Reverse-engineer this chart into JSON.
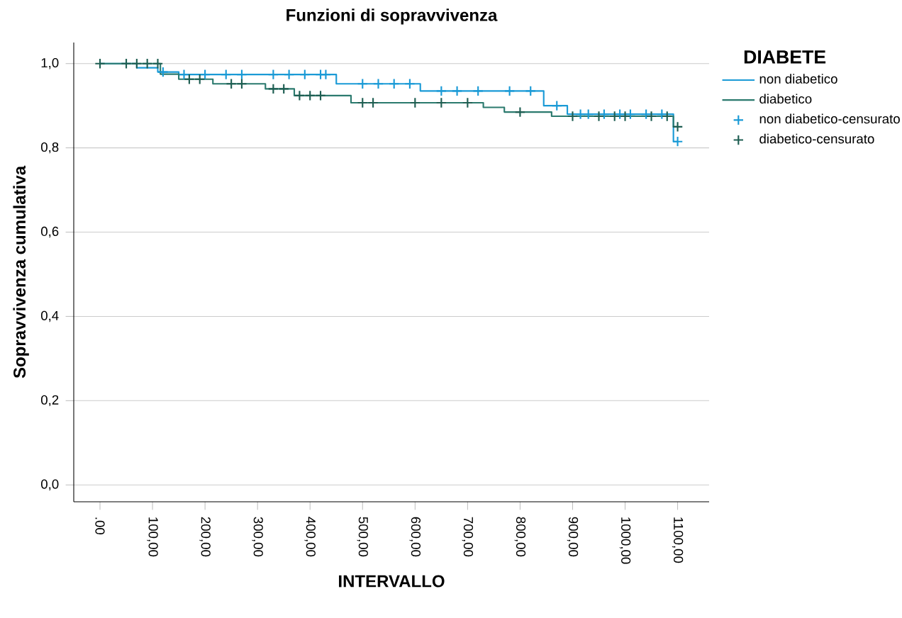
{
  "chart_data": {
    "type": "step",
    "title": "Funzioni di sopravvivenza",
    "xlabel": "INTERVALLO",
    "ylabel": "Sopravvivenza cumulativa",
    "legend_title": "DIABETE",
    "legend": "right",
    "grid": "y",
    "xlim": [
      -50,
      1160
    ],
    "ylim": [
      -0.04,
      1.05
    ],
    "xticks": [
      {
        "value": 0,
        "label": ".00"
      },
      {
        "value": 100,
        "label": "100,00"
      },
      {
        "value": 200,
        "label": "200,00"
      },
      {
        "value": 300,
        "label": "300,00"
      },
      {
        "value": 400,
        "label": "400,00"
      },
      {
        "value": 500,
        "label": "500,00"
      },
      {
        "value": 600,
        "label": "600,00"
      },
      {
        "value": 700,
        "label": "700,00"
      },
      {
        "value": 800,
        "label": "800,00"
      },
      {
        "value": 900,
        "label": "900,00"
      },
      {
        "value": 1000,
        "label": "1000,00"
      },
      {
        "value": 1100,
        "label": "1100,00"
      }
    ],
    "yticks": [
      {
        "value": 0,
        "label": "0,0"
      },
      {
        "value": 0.2,
        "label": "0,2"
      },
      {
        "value": 0.4,
        "label": "0,4"
      },
      {
        "value": 0.6,
        "label": "0,6"
      },
      {
        "value": 0.8,
        "label": "0,8"
      },
      {
        "value": 1.0,
        "label": "1,0"
      }
    ],
    "series": [
      {
        "name": "non diabetico",
        "type": "step",
        "color": "#1a9ad6",
        "x": [
          0,
          70,
          110,
          150,
          450,
          610,
          845,
          890,
          1092,
          1100
        ],
        "values": [
          1.0,
          0.99,
          0.98,
          0.974,
          0.952,
          0.935,
          0.9,
          0.88,
          0.815,
          0.815
        ]
      },
      {
        "name": "diabetico",
        "type": "step",
        "color": "#2b7a6e",
        "x": [
          0,
          115,
          150,
          215,
          315,
          370,
          478,
          730,
          770,
          860,
          1092,
          1100
        ],
        "values": [
          1.0,
          0.975,
          0.963,
          0.952,
          0.94,
          0.924,
          0.907,
          0.896,
          0.885,
          0.875,
          0.85,
          0.85
        ]
      },
      {
        "name": "non diabetico-censurato",
        "type": "scatter",
        "marker": "cross",
        "color": "#1a9ad6",
        "x": [
          120,
          160,
          200,
          240,
          270,
          330,
          360,
          390,
          420,
          430,
          500,
          530,
          560,
          590,
          650,
          680,
          720,
          780,
          820,
          870,
          915,
          930,
          960,
          990,
          1010,
          1040,
          1070,
          1100
        ],
        "values": [
          0.98,
          0.974,
          0.974,
          0.974,
          0.974,
          0.974,
          0.974,
          0.974,
          0.974,
          0.974,
          0.952,
          0.952,
          0.952,
          0.952,
          0.935,
          0.935,
          0.935,
          0.935,
          0.935,
          0.9,
          0.88,
          0.88,
          0.88,
          0.88,
          0.88,
          0.88,
          0.88,
          0.815
        ]
      },
      {
        "name": "diabetico-censurato",
        "type": "scatter",
        "marker": "cross",
        "color": "#1e5e52",
        "x": [
          0,
          50,
          70,
          90,
          110,
          170,
          190,
          250,
          270,
          330,
          350,
          380,
          400,
          420,
          500,
          520,
          600,
          650,
          700,
          800,
          900,
          950,
          980,
          1000,
          1050,
          1080,
          1100
        ],
        "values": [
          1.0,
          1.0,
          1.0,
          1.0,
          1.0,
          0.963,
          0.963,
          0.952,
          0.952,
          0.94,
          0.94,
          0.924,
          0.924,
          0.924,
          0.907,
          0.907,
          0.907,
          0.907,
          0.907,
          0.885,
          0.875,
          0.875,
          0.875,
          0.875,
          0.875,
          0.875,
          0.85
        ]
      }
    ]
  }
}
